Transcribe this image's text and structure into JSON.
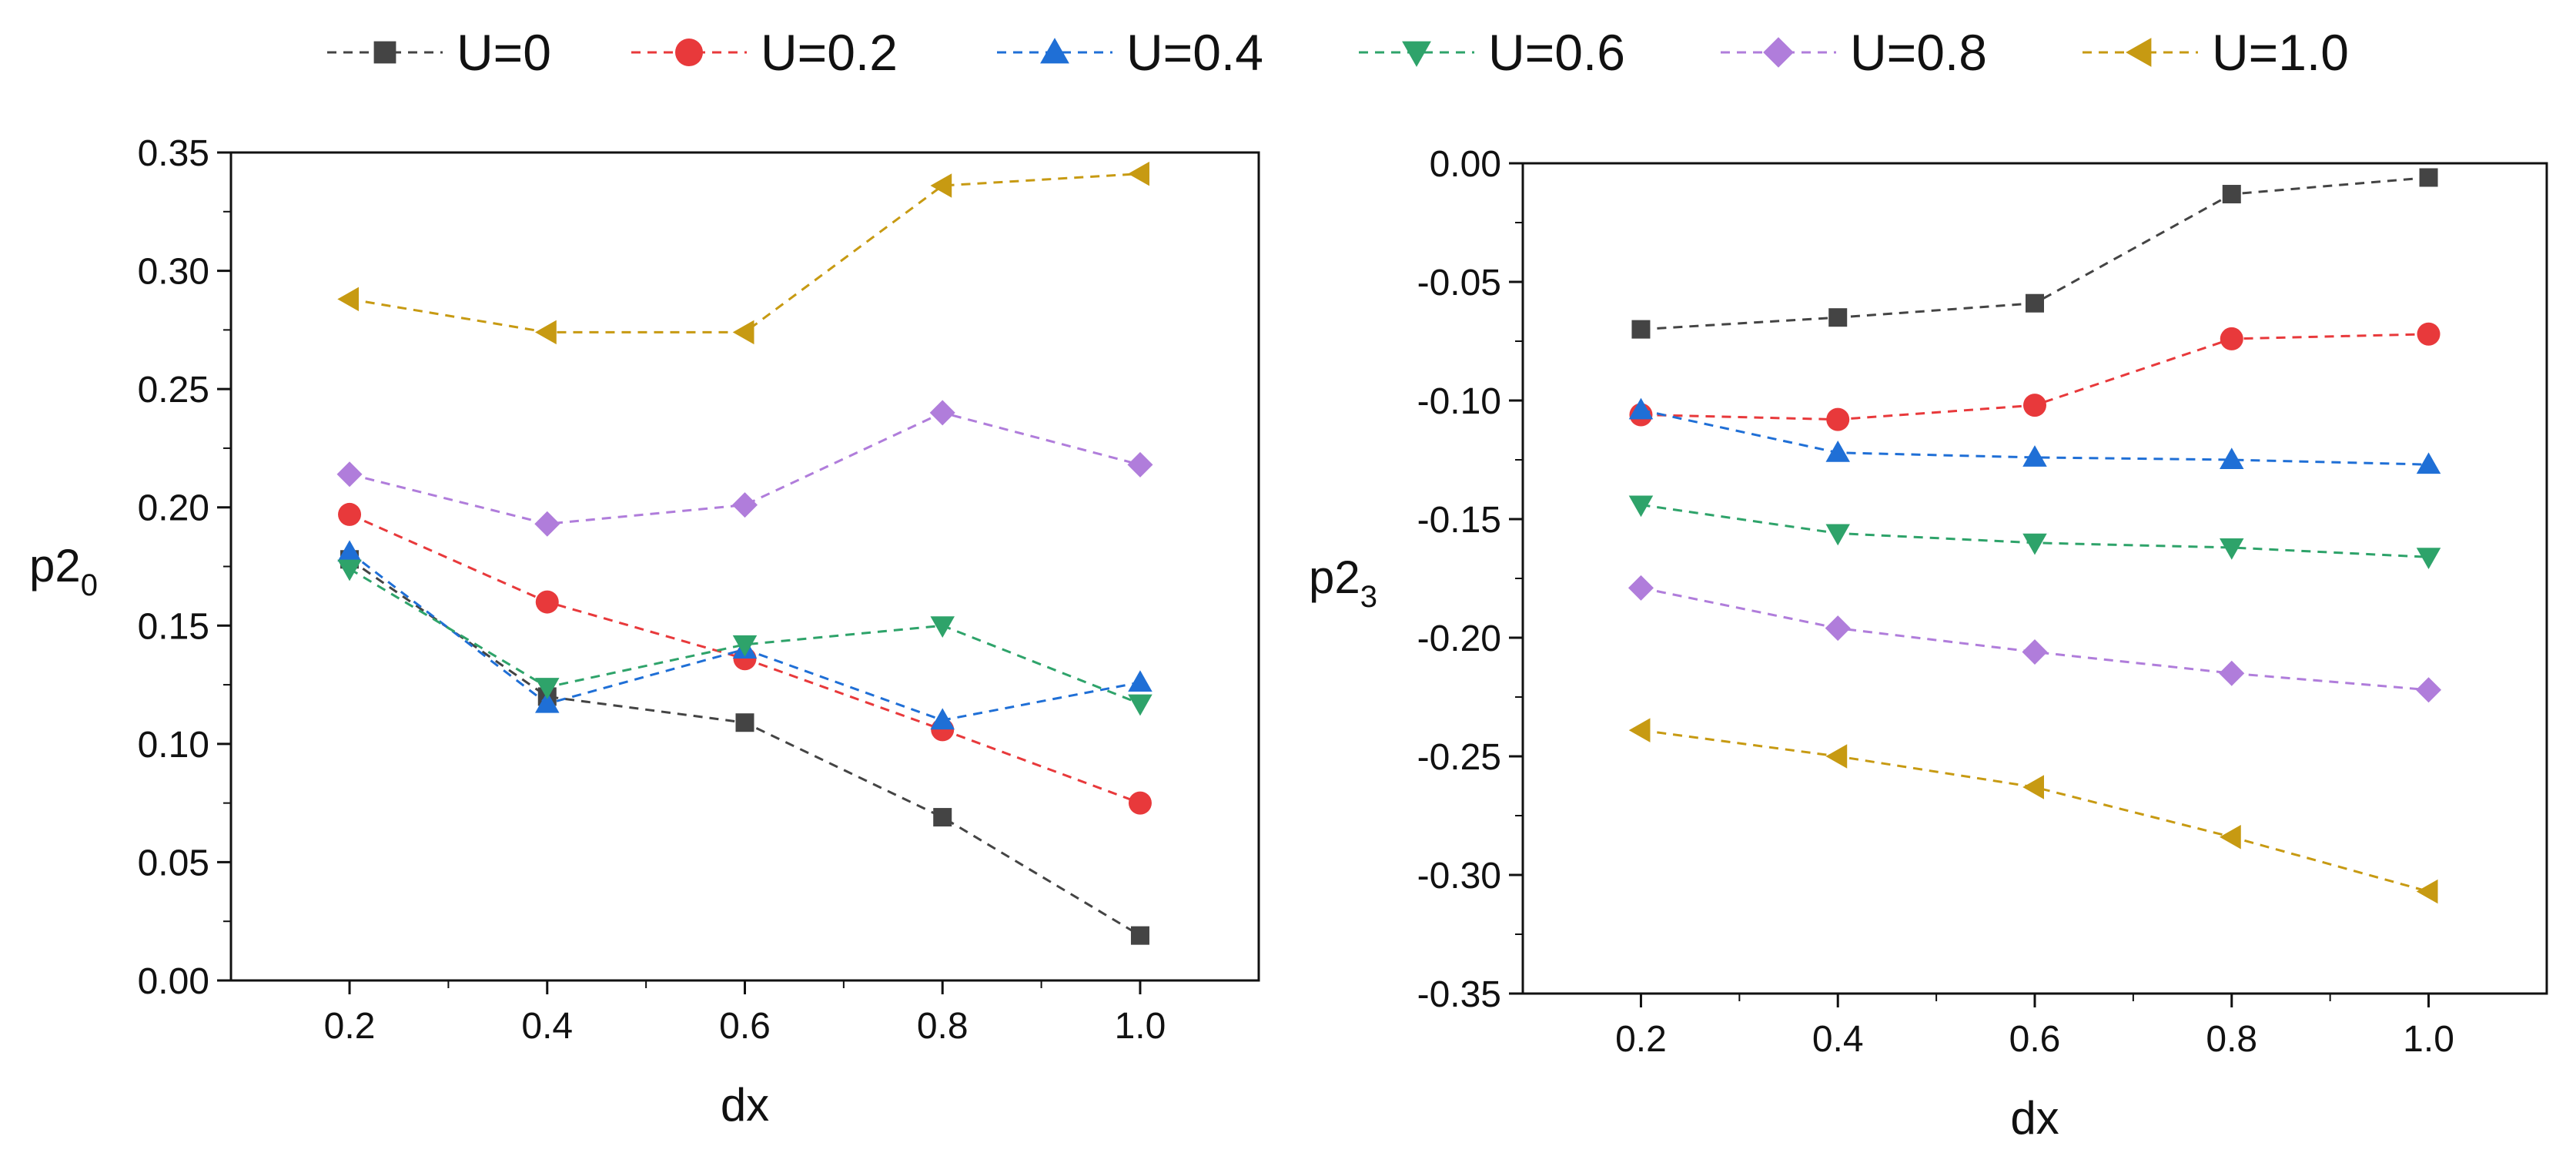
{
  "legend": {
    "placement": "top",
    "entries": [
      {
        "label": "U=0",
        "color": "#444444",
        "marker": "square"
      },
      {
        "label": "U=0.2",
        "color": "#e8393b",
        "marker": "circle"
      },
      {
        "label": "U=0.4",
        "color": "#1f6fd6",
        "marker": "triangle-up"
      },
      {
        "label": "U=0.6",
        "color": "#2ea36a",
        "marker": "triangle-down"
      },
      {
        "label": "U=0.8",
        "color": "#b07ddb",
        "marker": "diamond"
      },
      {
        "label": "U=1.0",
        "color": "#c79a12",
        "marker": "triangle-left"
      }
    ]
  },
  "chart_data": [
    {
      "type": "line",
      "line_style": "dashed",
      "xlabel": "dx",
      "ylabel_main": "p2",
      "ylabel_sub": "0",
      "x": [
        0.2,
        0.4,
        0.6,
        0.8,
        1.0
      ],
      "x_tick_labels": [
        "0.2",
        "0.4",
        "0.6",
        "0.8",
        "1.0"
      ],
      "xlim": [
        0.08,
        1.12
      ],
      "ylim": [
        0.0,
        0.35
      ],
      "y_ticks": [
        0.0,
        0.05,
        0.1,
        0.15,
        0.2,
        0.25,
        0.3,
        0.35
      ],
      "y_tick_labels": [
        "0.00",
        "0.05",
        "0.10",
        "0.15",
        "0.20",
        "0.25",
        "0.30",
        "0.35"
      ],
      "grid": false,
      "series": [
        {
          "name": "U=0",
          "values": [
            0.178,
            0.12,
            0.109,
            0.069,
            0.019
          ]
        },
        {
          "name": "U=0.2",
          "values": [
            0.197,
            0.16,
            0.136,
            0.106,
            0.075
          ]
        },
        {
          "name": "U=0.4",
          "values": [
            0.181,
            0.117,
            0.14,
            0.11,
            0.126
          ]
        },
        {
          "name": "U=0.6",
          "values": [
            0.174,
            0.124,
            0.142,
            0.15,
            0.117
          ]
        },
        {
          "name": "U=0.8",
          "values": [
            0.214,
            0.193,
            0.201,
            0.24,
            0.218
          ]
        },
        {
          "name": "U=1.0",
          "values": [
            0.288,
            0.274,
            0.274,
            0.336,
            0.341
          ]
        }
      ]
    },
    {
      "type": "line",
      "line_style": "dashed",
      "xlabel": "dx",
      "ylabel_main": "p2",
      "ylabel_sub": "3",
      "x": [
        0.2,
        0.4,
        0.6,
        0.8,
        1.0
      ],
      "x_tick_labels": [
        "0.2",
        "0.4",
        "0.6",
        "0.8",
        "1.0"
      ],
      "xlim": [
        0.08,
        1.12
      ],
      "ylim": [
        -0.35,
        0.0
      ],
      "y_ticks": [
        0.0,
        -0.05,
        -0.1,
        -0.15,
        -0.2,
        -0.25,
        -0.3,
        -0.35
      ],
      "y_tick_labels": [
        "0.00",
        "-0.05",
        "-0.10",
        "-0.15",
        "-0.20",
        "-0.25",
        "-0.30",
        "-0.35"
      ],
      "grid": false,
      "series": [
        {
          "name": "U=0",
          "values": [
            -0.07,
            -0.065,
            -0.059,
            -0.013,
            -0.006
          ]
        },
        {
          "name": "U=0.2",
          "values": [
            -0.106,
            -0.108,
            -0.102,
            -0.074,
            -0.072
          ]
        },
        {
          "name": "U=0.4",
          "values": [
            -0.104,
            -0.122,
            -0.124,
            -0.125,
            -0.127
          ]
        },
        {
          "name": "U=0.6",
          "values": [
            -0.144,
            -0.156,
            -0.16,
            -0.162,
            -0.166
          ]
        },
        {
          "name": "U=0.8",
          "values": [
            -0.179,
            -0.196,
            -0.206,
            -0.215,
            -0.222
          ]
        },
        {
          "name": "U=1.0",
          "values": [
            -0.239,
            -0.25,
            -0.263,
            -0.284,
            -0.307
          ]
        }
      ]
    }
  ]
}
